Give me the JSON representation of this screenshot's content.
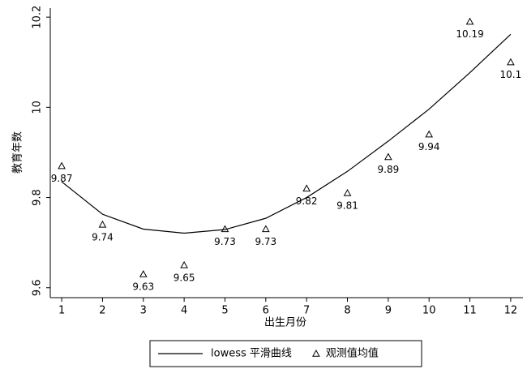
{
  "chart_data": {
    "type": "line",
    "x_label": "出生月份",
    "y_label": "教育年数",
    "x": [
      1,
      2,
      3,
      4,
      5,
      6,
      7,
      8,
      9,
      10,
      11,
      12
    ],
    "xlim": [
      0.72,
      12.3
    ],
    "xticks": [
      1,
      2,
      3,
      4,
      5,
      6,
      7,
      8,
      9,
      10,
      11,
      12
    ],
    "ylim": [
      9.578,
      10.22
    ],
    "yticks": [
      9.6,
      9.8,
      10,
      10.2
    ],
    "series": [
      {
        "name": "lowess 平滑曲线",
        "color": "#000000",
        "style": "line",
        "values": [
          9.835,
          9.763,
          9.73,
          9.721,
          9.729,
          9.754,
          9.8,
          9.858,
          9.925,
          9.996,
          10.077,
          10.162
        ]
      },
      {
        "name": "观测值均值",
        "color": "#000000",
        "style": "markers",
        "values": [
          9.87,
          9.74,
          9.63,
          9.65,
          9.73,
          9.73,
          9.82,
          9.81,
          9.89,
          9.94,
          10.19,
          10.1
        ]
      }
    ]
  }
}
